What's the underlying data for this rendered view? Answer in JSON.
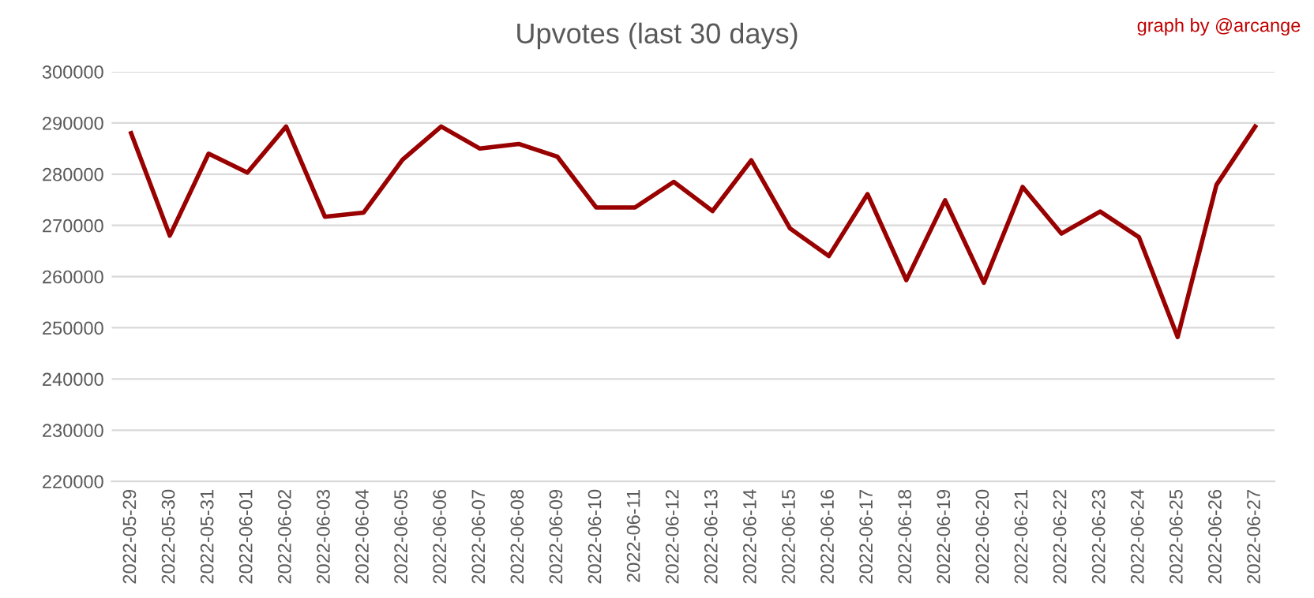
{
  "chart_data": {
    "type": "line",
    "title": "Upvotes (last 30 days)",
    "categories": [
      "2022-05-29",
      "2022-05-30",
      "2022-05-31",
      "2022-06-01",
      "2022-06-02",
      "2022-06-03",
      "2022-06-04",
      "2022-06-05",
      "2022-06-06",
      "2022-06-07",
      "2022-06-08",
      "2022-06-09",
      "2022-06-10",
      "2022-06-11",
      "2022-06-12",
      "2022-06-13",
      "2022-06-14",
      "2022-06-15",
      "2022-06-16",
      "2022-06-17",
      "2022-06-18",
      "2022-06-19",
      "2022-06-20",
      "2022-06-21",
      "2022-06-22",
      "2022-06-23",
      "2022-06-24",
      "2022-06-25",
      "2022-06-26",
      "2022-06-27"
    ],
    "series": [
      {
        "color": "#990000",
        "values": [
          288000,
          268000,
          284000,
          280300,
          289300,
          271700,
          272500,
          282800,
          289300,
          285000,
          285900,
          283400,
          273500,
          273500,
          278500,
          272800,
          282700,
          269400,
          264000,
          276100,
          259300,
          274900,
          258800,
          277500,
          268400,
          272700,
          267700,
          248200,
          277900,
          289300
        ]
      }
    ],
    "ylim": [
      220000,
      300000
    ],
    "yticks": [
      220000,
      230000,
      240000,
      250000,
      260000,
      270000,
      280000,
      290000,
      300000
    ],
    "grid": "y",
    "legend": false,
    "marker": "none",
    "line_style": "solid",
    "annotations": [
      "graph by @arcange"
    ]
  }
}
